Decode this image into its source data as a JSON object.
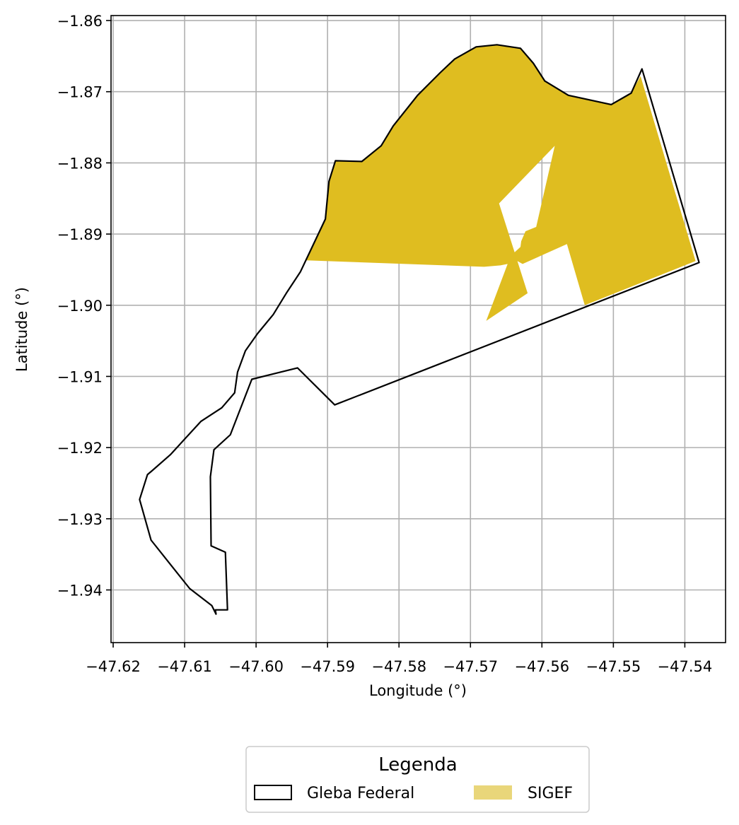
{
  "chart_data": {
    "type": "map",
    "xlabel": "Longitude (°)",
    "ylabel": "Latitude (°)",
    "xlim": [
      -47.6203,
      -47.5343
    ],
    "ylim": [
      -1.9474,
      -1.8593
    ],
    "grid": true,
    "x_ticks": [
      -47.62,
      -47.61,
      -47.6,
      -47.59,
      -47.58,
      -47.57,
      -47.56,
      -47.55,
      -47.54
    ],
    "x_tick_labels": [
      "−47.62",
      "−47.61",
      "−47.60",
      "−47.59",
      "−47.58",
      "−47.57",
      "−47.56",
      "−47.55",
      "−47.54"
    ],
    "y_ticks": [
      -1.86,
      -1.87,
      -1.88,
      -1.89,
      -1.9,
      -1.91,
      -1.92,
      -1.93,
      -1.94
    ],
    "y_tick_labels": [
      "−1.86",
      "−1.87",
      "−1.88",
      "−1.89",
      "−1.90",
      "−1.91",
      "−1.92",
      "−1.93",
      "−1.94"
    ],
    "legend": {
      "title": "Legenda",
      "placement": "bottom-center",
      "entries": [
        {
          "label": "Gleba Federal",
          "style": "outline"
        },
        {
          "label": "SIGEF",
          "style": "fill"
        }
      ]
    },
    "series": [
      {
        "name": "Gleba Federal",
        "kind": "outline",
        "color": "#000000",
        "points": [
          [
            -47.5938,
            -1.8953
          ],
          [
            -47.5903,
            -1.8879
          ],
          [
            -47.5898,
            -1.8826
          ],
          [
            -47.5889,
            -1.8797
          ],
          [
            -47.5852,
            -1.8798
          ],
          [
            -47.5825,
            -1.8776
          ],
          [
            -47.5808,
            -1.8748
          ],
          [
            -47.5774,
            -1.8705
          ],
          [
            -47.5742,
            -1.8673
          ],
          [
            -47.5722,
            -1.8654
          ],
          [
            -47.5692,
            -1.8637
          ],
          [
            -47.5663,
            -1.8634
          ],
          [
            -47.563,
            -1.8639
          ],
          [
            -47.5612,
            -1.866
          ],
          [
            -47.5596,
            -1.8685
          ],
          [
            -47.5563,
            -1.8705
          ],
          [
            -47.5503,
            -1.8718
          ],
          [
            -47.5475,
            -1.8702
          ],
          [
            -47.546,
            -1.8668
          ],
          [
            -47.538,
            -1.894
          ],
          [
            -47.589,
            -1.914
          ],
          [
            -47.5942,
            -1.9088
          ],
          [
            -47.6006,
            -1.9104
          ],
          [
            -47.6036,
            -1.9182
          ],
          [
            -47.6059,
            -1.9203
          ],
          [
            -47.6064,
            -1.9241
          ],
          [
            -47.6063,
            -1.9338
          ],
          [
            -47.6043,
            -1.9347
          ],
          [
            -47.604,
            -1.9428
          ],
          [
            -47.6057,
            -1.9428
          ],
          [
            -47.6056,
            -1.9434
          ],
          [
            -47.6062,
            -1.9422
          ],
          [
            -47.6093,
            -1.9398
          ],
          [
            -47.612,
            -1.9364
          ],
          [
            -47.6147,
            -1.933
          ],
          [
            -47.6163,
            -1.9273
          ],
          [
            -47.6152,
            -1.9238
          ],
          [
            -47.6145,
            -1.9232
          ],
          [
            -47.612,
            -1.921
          ],
          [
            -47.6077,
            -1.9163
          ],
          [
            -47.6048,
            -1.9144
          ],
          [
            -47.603,
            -1.9123
          ],
          [
            -47.6026,
            -1.9094
          ],
          [
            -47.6015,
            -1.9064
          ],
          [
            -47.5998,
            -1.904
          ],
          [
            -47.5976,
            -1.9013
          ],
          [
            -47.5957,
            -1.8982
          ],
          [
            -47.5938,
            -1.8953
          ]
        ]
      },
      {
        "name": "SIGEF",
        "kind": "filled_area",
        "color": "#dfbd20",
        "points": [
          [
            -47.593,
            -1.8937
          ],
          [
            -47.5903,
            -1.8879
          ],
          [
            -47.5898,
            -1.8826
          ],
          [
            -47.5889,
            -1.8797
          ],
          [
            -47.5852,
            -1.8798
          ],
          [
            -47.5825,
            -1.8776
          ],
          [
            -47.5808,
            -1.8748
          ],
          [
            -47.5774,
            -1.8705
          ],
          [
            -47.5742,
            -1.8673
          ],
          [
            -47.5722,
            -1.8654
          ],
          [
            -47.5692,
            -1.8637
          ],
          [
            -47.5663,
            -1.8634
          ],
          [
            -47.563,
            -1.8639
          ],
          [
            -47.5612,
            -1.866
          ],
          [
            -47.5596,
            -1.8685
          ],
          [
            -47.5563,
            -1.8705
          ],
          [
            -47.5503,
            -1.8718
          ],
          [
            -47.5475,
            -1.8702
          ],
          [
            -47.5462,
            -1.8678
          ],
          [
            -47.5385,
            -1.8938
          ],
          [
            -47.554,
            -1.9
          ],
          [
            -47.5565,
            -1.8914
          ],
          [
            -47.5627,
            -1.8942
          ],
          [
            -47.5645,
            -1.8932
          ],
          [
            -47.563,
            -1.8918
          ],
          [
            -47.5629,
            -1.891
          ],
          [
            -47.5623,
            -1.8896
          ],
          [
            -47.5608,
            -1.889
          ],
          [
            -47.5582,
            -1.8776
          ],
          [
            -47.566,
            -1.8857
          ],
          [
            -47.562,
            -1.8983
          ],
          [
            -47.5678,
            -1.9022
          ],
          [
            -47.5648,
            -1.8942
          ],
          [
            -47.5658,
            -1.8944
          ],
          [
            -47.5681,
            -1.8946
          ]
        ]
      }
    ]
  }
}
